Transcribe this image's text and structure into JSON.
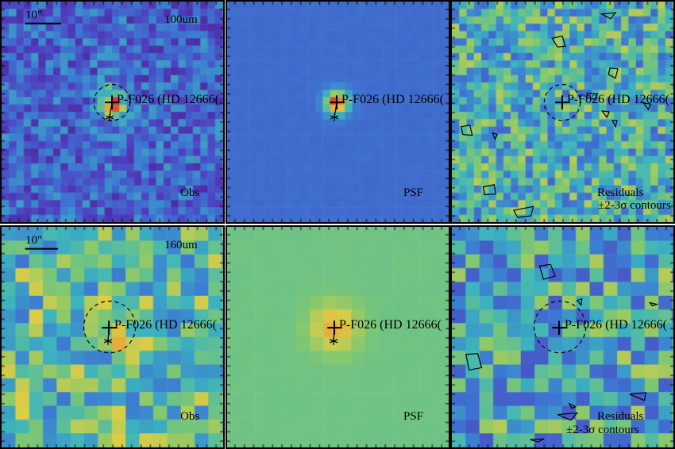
{
  "figure": {
    "rows": [
      {
        "band": "100um",
        "scale_label": "10\"",
        "panels": [
          {
            "kind": "observed",
            "caption": "Obs"
          },
          {
            "kind": "psf",
            "caption": "PSF"
          },
          {
            "kind": "residual",
            "caption": "Residuals",
            "caption2": "±2-3σ contours"
          }
        ]
      },
      {
        "band": "160um",
        "scale_label": "10\"",
        "panels": [
          {
            "kind": "observed",
            "caption": "Obs"
          },
          {
            "kind": "psf",
            "caption": "PSF"
          },
          {
            "kind": "residual",
            "caption": "Residuals",
            "caption2": "±2-3σ contours"
          }
        ]
      }
    ],
    "target_label": "P-F026 (HD 12666(",
    "colors": {
      "psf_bg_100": "#4a74c4",
      "psf_bg_160": "#7fbf77",
      "frame": "#000000"
    }
  }
}
